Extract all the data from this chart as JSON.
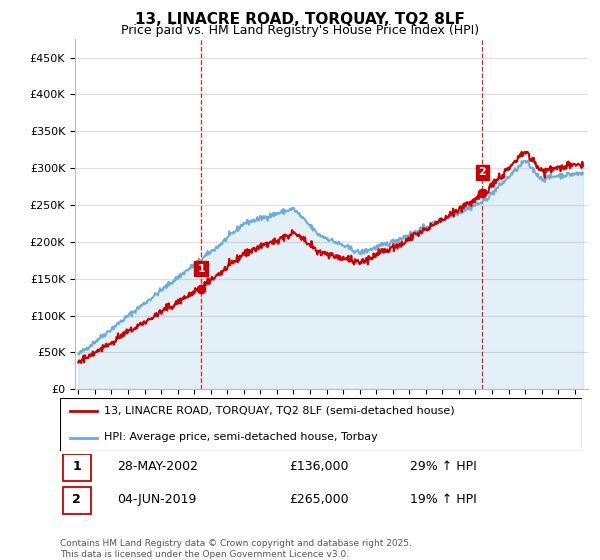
{
  "title": "13, LINACRE ROAD, TORQUAY, TQ2 8LF",
  "subtitle": "Price paid vs. HM Land Registry's House Price Index (HPI)",
  "legend_line1": "13, LINACRE ROAD, TORQUAY, TQ2 8LF (semi-detached house)",
  "legend_line2": "HPI: Average price, semi-detached house, Torbay",
  "sale1_date": "28-MAY-2002",
  "sale1_price": "£136,000",
  "sale1_hpi": "29% ↑ HPI",
  "sale2_date": "04-JUN-2019",
  "sale2_price": "£265,000",
  "sale2_hpi": "19% ↑ HPI",
  "footer": "Contains HM Land Registry data © Crown copyright and database right 2025.\nThis data is licensed under the Open Government Licence v3.0.",
  "hpi_color": "#6baed6",
  "price_color": "#cc0000",
  "marker1_year": 2002.42,
  "marker2_year": 2019.42,
  "ylim_max": 475000,
  "xlim_start": 1994.8,
  "xlim_end": 2025.8,
  "ytick_interval": 50000,
  "sale1_price_val": 136000,
  "sale2_price_val": 265000
}
